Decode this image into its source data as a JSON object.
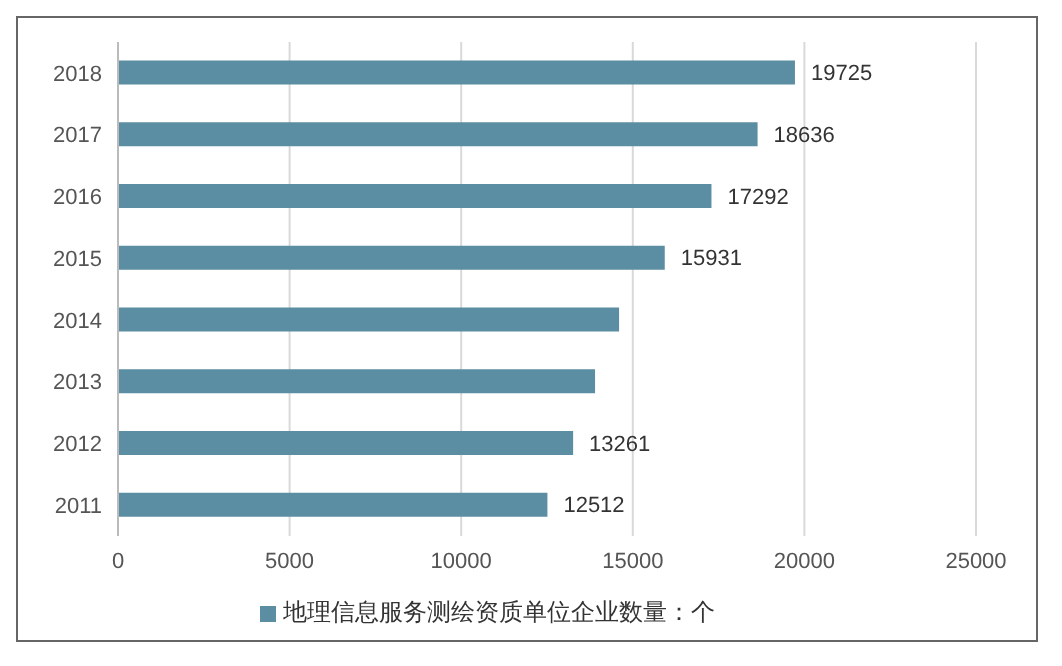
{
  "chart_data": {
    "type": "bar",
    "orientation": "horizontal",
    "categories": [
      "2018",
      "2017",
      "2016",
      "2015",
      "2014",
      "2013",
      "2012",
      "2011"
    ],
    "series": [
      {
        "name": "地理信息服务测绘资质单位企业数量：个",
        "color": "#5b8ea2",
        "values": [
          19725,
          18636,
          17292,
          15931,
          14600,
          13900,
          13261,
          12512
        ],
        "value_labels": [
          "19725",
          "18636",
          "17292",
          "15931",
          null,
          null,
          "13261",
          "12512"
        ]
      }
    ],
    "xlim": [
      0,
      25000
    ],
    "xticks": [
      0,
      5000,
      10000,
      15000,
      20000,
      25000
    ],
    "grid": "x",
    "legend": "bottom"
  }
}
